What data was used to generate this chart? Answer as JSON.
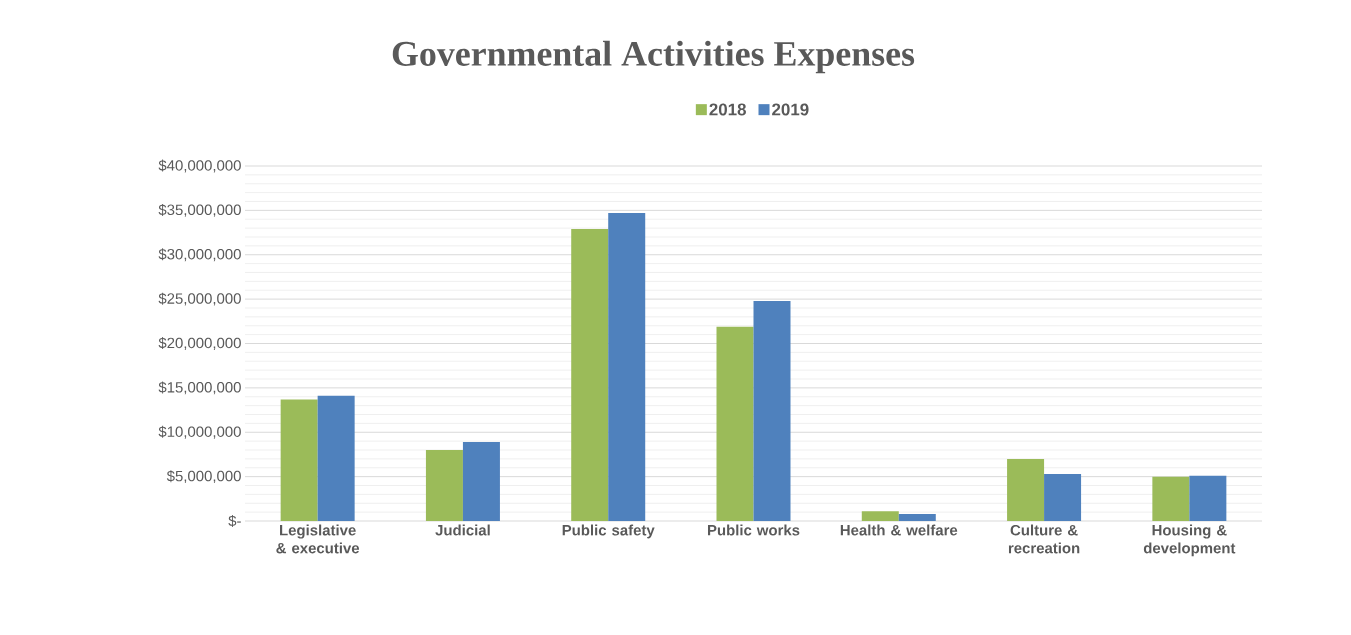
{
  "chart_data": {
    "type": "bar",
    "title": "Governmental Activities Expenses",
    "categories": [
      "Legislative & executive",
      "Judicial",
      "Public safety",
      "Public works",
      "Health & welfare",
      "Culture & recreation",
      "Housing & development"
    ],
    "series": [
      {
        "name": "2018",
        "color": "#9bbb59",
        "values": [
          13700000,
          8000000,
          32900000,
          21900000,
          1100000,
          7000000,
          5000000
        ]
      },
      {
        "name": "2019",
        "color": "#4f81bd",
        "values": [
          14100000,
          8900000,
          34700000,
          24800000,
          800000,
          5300000,
          5100000
        ]
      }
    ],
    "ylim": [
      0,
      40000000
    ],
    "yticks": [
      {
        "value": 0,
        "label": "$-"
      },
      {
        "value": 5000000,
        "label": "$5,000,000"
      },
      {
        "value": 10000000,
        "label": "$10,000,000"
      },
      {
        "value": 15000000,
        "label": "$15,000,000"
      },
      {
        "value": 20000000,
        "label": "$20,000,000"
      },
      {
        "value": 25000000,
        "label": "$25,000,000"
      },
      {
        "value": 30000000,
        "label": "$30,000,000"
      },
      {
        "value": 35000000,
        "label": "$35,000,000"
      },
      {
        "value": 40000000,
        "label": "$40,000,000"
      }
    ],
    "grid": "y",
    "legend": "top"
  }
}
